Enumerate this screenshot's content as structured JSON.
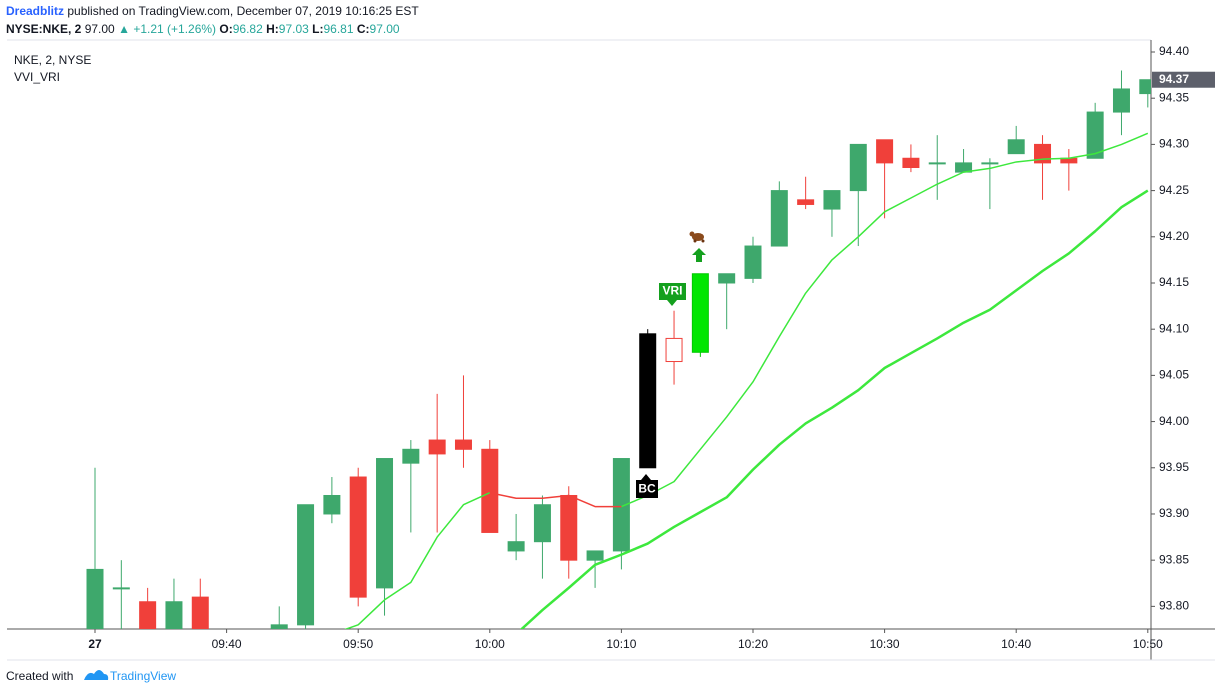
{
  "header": {
    "author": "Dreadblitz",
    "published": " published on TradingView.com, December 07, 2019 10:16:25 EST",
    "symbol": "NYSE:NKE, 2",
    "price": "97.00",
    "arrow": "▲",
    "change": "+1.21 (+1.26%)",
    "o_label": "O:",
    "o": "96.82",
    "h_label": "H:",
    "h": "97.03",
    "l_label": "L:",
    "l": "96.81",
    "c_label": "C:",
    "c": "97.00"
  },
  "chart_data": {
    "type": "candlestick",
    "title": "NKE, 2, NYSE",
    "subtitle": "VVI_VRI",
    "categories": [
      "27",
      null,
      null,
      null,
      null,
      "09:40",
      null,
      null,
      null,
      null,
      "09:50",
      null,
      null,
      null,
      null,
      "10:00",
      null,
      null,
      null,
      null,
      "10:10",
      null,
      null,
      null,
      null,
      "10:20",
      null,
      null,
      null,
      null,
      "10:30",
      null,
      null,
      null,
      null,
      "10:40",
      null,
      null,
      null,
      null,
      "10:50"
    ],
    "open": [
      93.77,
      93.82,
      93.805,
      93.77,
      93.81,
      93.76,
      93.76,
      93.77,
      93.78,
      93.9,
      93.94,
      93.82,
      93.955,
      93.98,
      93.98,
      93.97,
      93.86,
      93.87,
      93.92,
      93.85,
      93.86,
      93.95,
      94.09,
      94.075,
      94.15,
      94.155,
      94.19,
      94.24,
      94.23,
      94.25,
      94.305,
      94.285,
      94.28,
      94.27,
      94.28,
      94.29,
      94.3,
      94.285,
      94.285,
      94.335,
      94.355
    ],
    "high": [
      93.95,
      93.85,
      93.82,
      93.83,
      93.83,
      93.77,
      93.775,
      93.8,
      93.91,
      93.94,
      93.95,
      93.96,
      93.98,
      94.03,
      94.05,
      93.98,
      93.9,
      93.92,
      93.93,
      93.86,
      93.96,
      94.1,
      94.12,
      94.16,
      94.16,
      94.2,
      94.26,
      94.265,
      94.25,
      94.3,
      94.305,
      94.3,
      94.31,
      94.295,
      94.285,
      94.32,
      94.31,
      94.295,
      94.345,
      94.38,
      94.37
    ],
    "low": [
      93.75,
      93.77,
      93.76,
      93.76,
      93.76,
      93.74,
      93.75,
      93.76,
      93.77,
      93.89,
      93.8,
      93.79,
      93.88,
      93.88,
      93.95,
      93.88,
      93.85,
      93.83,
      93.83,
      93.82,
      93.84,
      93.95,
      94.04,
      94.07,
      94.1,
      94.15,
      94.19,
      94.23,
      94.2,
      94.19,
      94.22,
      94.27,
      94.24,
      94.27,
      94.23,
      94.29,
      94.24,
      94.25,
      94.285,
      94.31,
      94.34
    ],
    "close": [
      93.84,
      93.82,
      93.77,
      93.805,
      93.77,
      93.75,
      93.77,
      93.78,
      93.91,
      93.92,
      93.81,
      93.96,
      93.97,
      93.965,
      93.97,
      93.88,
      93.87,
      93.91,
      93.85,
      93.86,
      93.96,
      94.095,
      94.065,
      94.16,
      94.16,
      94.19,
      94.25,
      94.235,
      94.25,
      94.3,
      94.28,
      94.275,
      94.28,
      94.28,
      94.28,
      94.305,
      94.28,
      94.28,
      94.335,
      94.36,
      94.37
    ],
    "colors": [
      "#3ea86c",
      "#3ea86c",
      "#f0403a",
      "#3ea86c",
      "#f0403a",
      "#f0403a",
      "#3ea86c",
      "#3ea86c",
      "#3ea86c",
      "#3ea86c",
      "#f0403a",
      "#3ea86c",
      "#3ea86c",
      "#f0403a",
      "#f0403a",
      "#f0403a",
      "#3ea86c",
      "#3ea86c",
      "#f0403a",
      "#3ea86c",
      "#3ea86c",
      "#000000",
      "#ffffff",
      "#00e600",
      "#3ea86c",
      "#3ea86c",
      "#3ea86c",
      "#f0403a",
      "#3ea86c",
      "#3ea86c",
      "#f0403a",
      "#f0403a",
      "#3ea86c",
      "#3ea86c",
      "#3ea86c",
      "#3ea86c",
      "#f0403a",
      "#f0403a",
      "#3ea86c",
      "#3ea86c",
      "#3ea86c"
    ],
    "border_colors": [
      "#3ea86c",
      "#3ea86c",
      "#f0403a",
      "#3ea86c",
      "#f0403a",
      "#f0403a",
      "#3ea86c",
      "#3ea86c",
      "#3ea86c",
      "#3ea86c",
      "#f0403a",
      "#3ea86c",
      "#3ea86c",
      "#f0403a",
      "#f0403a",
      "#f0403a",
      "#3ea86c",
      "#3ea86c",
      "#f0403a",
      "#3ea86c",
      "#3ea86c",
      "#000000",
      "#f0403a",
      "#00c800",
      "#3ea86c",
      "#3ea86c",
      "#3ea86c",
      "#f0403a",
      "#3ea86c",
      "#3ea86c",
      "#f0403a",
      "#f0403a",
      "#3ea86c",
      "#3ea86c",
      "#3ea86c",
      "#3ea86c",
      "#f0403a",
      "#f0403a",
      "#3ea86c",
      "#3ea86c",
      "#3ea86c"
    ],
    "series": [
      {
        "color": "#3de83d",
        "width": 1.5,
        "values": [
          null,
          null,
          null,
          null,
          null,
          null,
          null,
          null,
          null,
          93.77,
          93.78,
          93.807,
          93.826,
          93.875,
          93.91,
          93.923,
          null,
          null,
          null,
          null,
          93.908,
          93.92,
          93.935,
          93.97,
          94.005,
          94.043,
          94.092,
          94.139,
          94.175,
          94.2,
          94.227,
          94.242,
          94.257,
          94.27,
          94.274,
          94.281,
          94.284,
          94.285,
          94.29,
          94.3,
          94.312
        ]
      },
      {
        "color": "#f0403a",
        "width": 1.5,
        "values": [
          null,
          null,
          null,
          null,
          null,
          null,
          null,
          null,
          null,
          null,
          null,
          null,
          null,
          null,
          null,
          93.923,
          93.917,
          93.917,
          93.92,
          93.908,
          93.908,
          null,
          null,
          null,
          null,
          null,
          null,
          null,
          null,
          null,
          null,
          null,
          null,
          null,
          null,
          null,
          null,
          null,
          null,
          null,
          null
        ]
      },
      {
        "color": "#3de83d",
        "width": 2.5,
        "values": [
          null,
          null,
          null,
          null,
          null,
          null,
          null,
          null,
          null,
          null,
          null,
          null,
          null,
          null,
          null,
          93.76,
          93.77,
          93.796,
          93.82,
          93.845,
          93.856,
          93.868,
          93.886,
          93.902,
          93.918,
          93.948,
          93.975,
          93.998,
          94.015,
          94.034,
          94.058,
          94.074,
          94.09,
          94.107,
          94.121,
          94.142,
          94.163,
          94.182,
          94.206,
          94.232,
          94.25
        ]
      }
    ],
    "ylim": [
      93.7755,
      94.413
    ],
    "yticks": [
      {
        "value": 94.4,
        "label": "94.40"
      },
      94.35,
      {
        "value": 94.3,
        "label": "94.30"
      },
      94.25,
      {
        "value": 94.2,
        "label": "94.20"
      },
      94.15,
      {
        "value": 94.1,
        "label": "94.10"
      },
      94.05,
      {
        "value": 94.0,
        "label": "94.00"
      },
      93.95,
      {
        "value": 93.9,
        "label": "93.90"
      },
      93.85,
      {
        "value": 93.8,
        "label": "93.80"
      }
    ],
    "last_price": 94.37,
    "annotations": [
      "BC",
      "VRI"
    ]
  },
  "footer": {
    "created": "Created with",
    "brand": "TradingView"
  }
}
